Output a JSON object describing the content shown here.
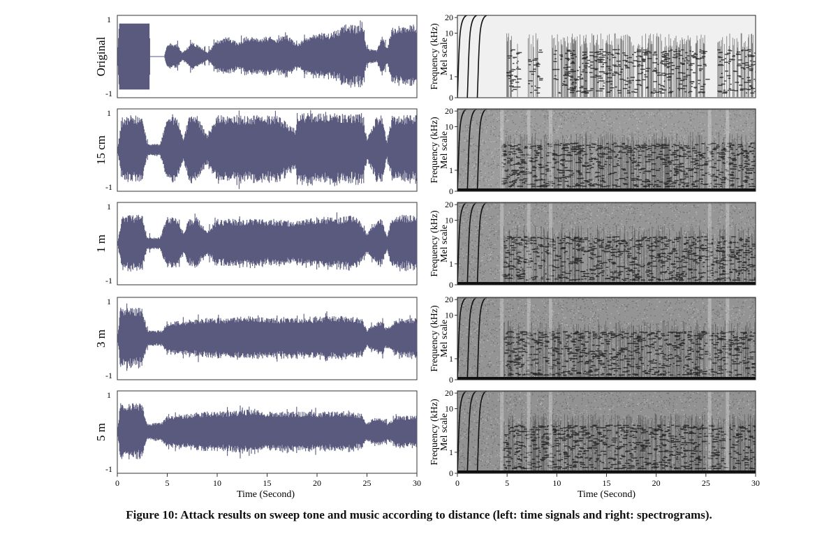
{
  "figure": {
    "caption": "Figure 10: Attack results on sweep tone and music according to distance (left: time signals and right: spectrograms).",
    "waveform_color": "#5a5a7e",
    "spectrogram_colors": {
      "background": "#8a8a8a",
      "dark": "#1a1a1a",
      "light": "#e6e6e6"
    }
  },
  "chart_data": [
    {
      "type": "area",
      "panel": "time-signals",
      "rows": [
        "Original",
        "15 cm",
        "1 m",
        "3 m",
        "5 m"
      ],
      "x_ticks": [
        0,
        5,
        10,
        15,
        20,
        25,
        30
      ],
      "xlabel": "Time (Second)",
      "xlim": [
        0,
        30
      ],
      "ylim": [
        -1,
        1
      ],
      "y_ticks": [
        "1",
        "-1"
      ],
      "series": [
        {
          "name": "Original",
          "envelope": {
            "x": [
              0,
              0.2,
              3.2,
              3.3,
              4.7,
              5.0,
              6.0,
              6.5,
              7.5,
              8.0,
              9.0,
              10.0,
              11.0,
              12.0,
              13.0,
              14.0,
              15.0,
              16.0,
              17.0,
              18.0,
              19.0,
              20.0,
              21.0,
              22.0,
              23.0,
              24.0,
              24.5,
              25.0,
              26.0,
              26.5,
              27.0,
              27.5,
              28.0,
              29.0,
              30.0
            ],
            "amp": [
              0.0,
              0.8,
              0.8,
              0.0,
              0.0,
              0.35,
              0.3,
              0.1,
              0.35,
              0.3,
              0.1,
              0.4,
              0.5,
              0.35,
              0.5,
              0.45,
              0.5,
              0.45,
              0.55,
              0.3,
              0.5,
              0.6,
              0.55,
              0.65,
              0.8,
              0.75,
              0.85,
              0.2,
              0.15,
              0.5,
              0.2,
              0.7,
              0.75,
              0.8,
              0.8
            ]
          }
        },
        {
          "name": "15 cm",
          "envelope": {
            "x": [
              0,
              0.5,
              2.5,
              3.0,
              4.3,
              5.0,
              6.0,
              6.6,
              7.2,
              8.0,
              9.0,
              10.0,
              12.0,
              14.0,
              16.0,
              17.9,
              18.0,
              20.0,
              22.0,
              24.0,
              24.5,
              25.0,
              26.0,
              26.5,
              27.0,
              27.5,
              28.0,
              30.0
            ],
            "amp": [
              0.0,
              0.85,
              0.85,
              0.15,
              0.15,
              0.85,
              0.85,
              0.3,
              0.85,
              0.85,
              0.35,
              0.85,
              0.85,
              0.85,
              0.85,
              0.5,
              0.9,
              0.9,
              0.9,
              0.9,
              0.9,
              0.3,
              0.85,
              0.85,
              0.2,
              0.85,
              0.85,
              0.85
            ]
          }
        },
        {
          "name": "1 m",
          "envelope": {
            "x": [
              0,
              0.5,
              2.5,
              3.0,
              4.3,
              5.0,
              6.0,
              6.6,
              7.2,
              8.0,
              9.0,
              10.0,
              12.0,
              14.0,
              16.0,
              18.0,
              20.0,
              22.0,
              24.0,
              25.0,
              26.0,
              26.5,
              27.0,
              27.5,
              28.0,
              30.0
            ],
            "amp": [
              0.0,
              0.7,
              0.7,
              0.15,
              0.15,
              0.7,
              0.6,
              0.3,
              0.6,
              0.65,
              0.3,
              0.6,
              0.6,
              0.6,
              0.6,
              0.55,
              0.65,
              0.65,
              0.7,
              0.25,
              0.6,
              0.6,
              0.2,
              0.65,
              0.7,
              0.7
            ]
          }
        },
        {
          "name": "3 m",
          "envelope": {
            "x": [
              0,
              0.3,
              2.5,
              3.0,
              4.5,
              5.0,
              7.0,
              9.0,
              11.0,
              13.0,
              15.0,
              17.0,
              19.0,
              21.0,
              23.0,
              24.5,
              25.0,
              25.5,
              26.5,
              27.0,
              28.0,
              30.0
            ],
            "amp": [
              0.0,
              0.75,
              0.75,
              0.2,
              0.2,
              0.4,
              0.45,
              0.5,
              0.5,
              0.55,
              0.5,
              0.5,
              0.5,
              0.55,
              0.55,
              0.5,
              0.2,
              0.35,
              0.45,
              0.25,
              0.5,
              0.5
            ]
          }
        },
        {
          "name": "5 m",
          "envelope": {
            "x": [
              0,
              0.3,
              2.5,
              3.0,
              4.5,
              5.0,
              7.0,
              9.0,
              11.0,
              13.0,
              15.0,
              17.0,
              19.0,
              21.0,
              23.0,
              24.5,
              25.0,
              25.5,
              26.5,
              27.0,
              28.0,
              30.0
            ],
            "amp": [
              0.0,
              0.7,
              0.7,
              0.2,
              0.25,
              0.4,
              0.45,
              0.5,
              0.5,
              0.55,
              0.5,
              0.5,
              0.5,
              0.5,
              0.5,
              0.45,
              0.2,
              0.35,
              0.35,
              0.2,
              0.4,
              0.4
            ]
          }
        }
      ]
    },
    {
      "type": "heatmap",
      "panel": "spectrograms",
      "rows": [
        "Original",
        "15 cm",
        "1 m",
        "3 m",
        "5 m"
      ],
      "x_ticks": [
        0,
        5,
        10,
        15,
        20,
        25,
        30
      ],
      "xlabel": "Time (Second)",
      "xlim": [
        0,
        30
      ],
      "ylabel_lines": [
        "Frequency (kHz)",
        "Mel scale"
      ],
      "y_ticks_khz": [
        0,
        1,
        10,
        20
      ],
      "y_max_khz": 22,
      "sweep_times": [
        0.5,
        1.5,
        2.5
      ],
      "music_start": 4.3,
      "row_noise": [
        0.05,
        0.35,
        0.5,
        0.55,
        0.6
      ]
    }
  ]
}
